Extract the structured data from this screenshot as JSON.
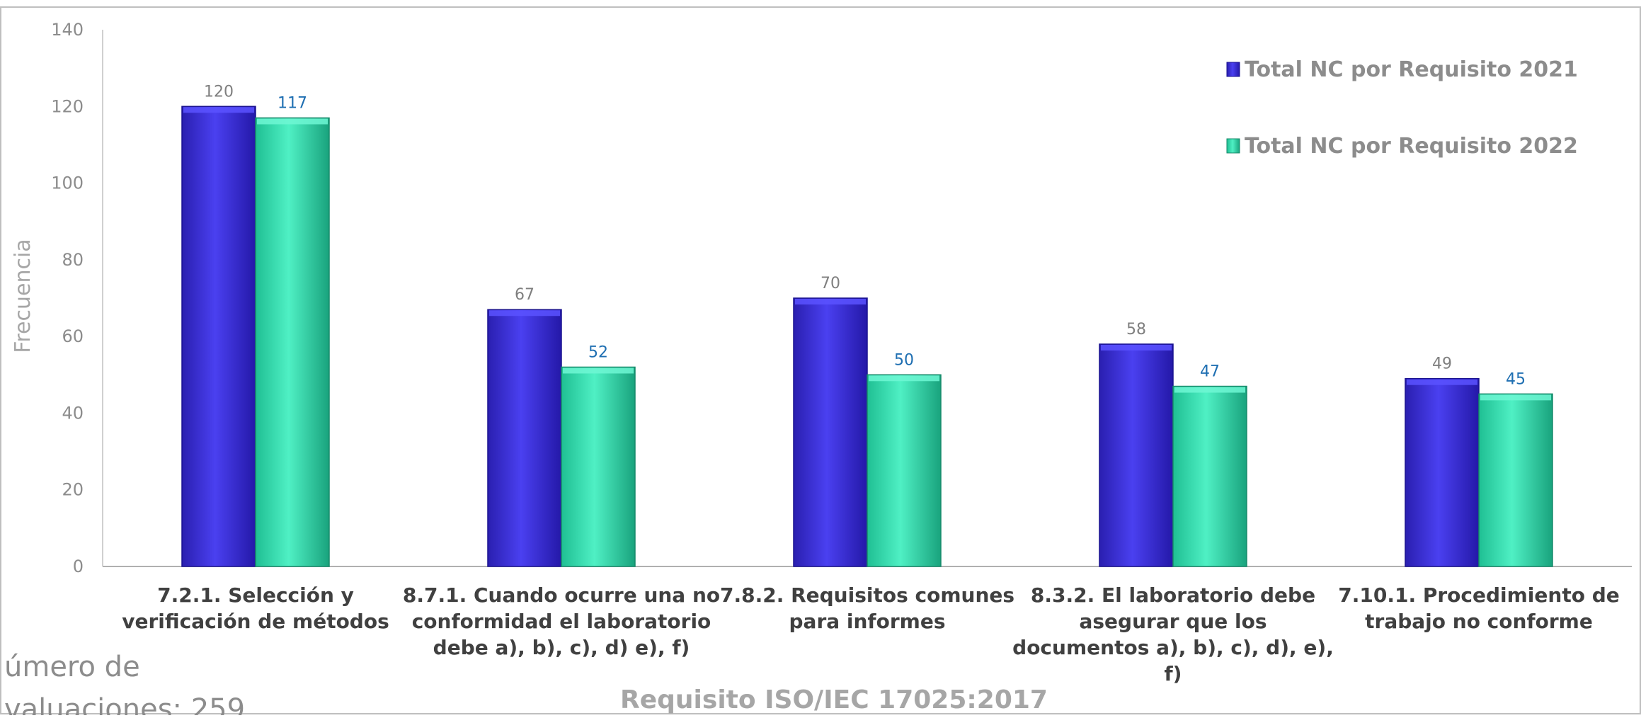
{
  "chart_data": {
    "type": "bar",
    "title": "",
    "xlabel": "Requisito ISO/IEC 17025:2017",
    "ylabel": "Frecuencia",
    "ylim": [
      0,
      140
    ],
    "yticks": [
      0,
      20,
      40,
      60,
      80,
      100,
      120,
      140
    ],
    "grid": false,
    "legend_position": "top-right",
    "categories": [
      [
        "7.2.1. Selección y",
        "verificación de métodos"
      ],
      [
        "8.7.1. Cuando ocurre una no",
        "conformidad el laboratorio",
        "debe a), b), c), d) e), f)"
      ],
      [
        "7.8.2. Requisitos comunes",
        "para informes"
      ],
      [
        "8.3.2. El laboratorio debe",
        "asegurar que los",
        "documentos a), b), c), d), e),",
        "f)"
      ],
      [
        "7.10.1. Procedimiento de",
        "trabajo no conforme"
      ]
    ],
    "series": [
      {
        "name": "Total NC  por Requisito 2021",
        "values": [
          120,
          67,
          70,
          58,
          49
        ],
        "color": "#3a2fd6"
      },
      {
        "name": "Total NC  por Requisito 2022",
        "values": [
          117,
          52,
          50,
          47,
          45
        ],
        "color": "#33e0b0"
      }
    ]
  },
  "footnote": [
    "úmero de",
    "valuaciones: 259"
  ]
}
